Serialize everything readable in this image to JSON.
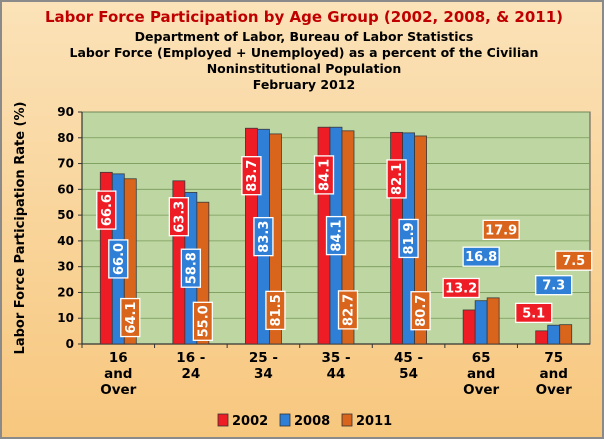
{
  "chart_data": {
    "type": "bar",
    "title": "Labor Force Participation by Age Group (2002, 2008, & 2011)",
    "subtitle_lines": [
      "Department of Labor, Bureau of Labor Statistics",
      "Labor Force (Employed + Unemployed) as a percent of the Civilian",
      "Noninstitutional Population",
      "February 2012"
    ],
    "ylabel": "Labor Force Participation Rate (%)",
    "xlabel": "",
    "ylim": [
      0,
      90
    ],
    "yticks": [
      0,
      10,
      20,
      30,
      40,
      50,
      60,
      70,
      80,
      90
    ],
    "grid": true,
    "legend_position": "bottom",
    "categories": [
      [
        "16",
        "and",
        "Over"
      ],
      [
        "16 -",
        "24"
      ],
      [
        "25 -",
        "34"
      ],
      [
        "35 -",
        "44"
      ],
      [
        "45 -",
        "54"
      ],
      [
        "65",
        "and",
        "Over"
      ],
      [
        "75",
        "and",
        "Over"
      ]
    ],
    "series": [
      {
        "name": "2002",
        "color": "#ee1c24",
        "values": [
          66.6,
          63.3,
          83.7,
          84.1,
          82.1,
          13.2,
          5.1
        ],
        "labels": [
          "66.6",
          "63.3",
          "83.7",
          "84.1",
          "82.1",
          "13.2",
          "5.1"
        ]
      },
      {
        "name": "2008",
        "color": "#2f7fd6",
        "values": [
          66.0,
          58.8,
          83.3,
          84.1,
          81.9,
          16.8,
          7.3
        ],
        "labels": [
          "66.0",
          "58.8",
          "83.3",
          "84.1",
          "81.9",
          "16.8",
          "7.3"
        ]
      },
      {
        "name": "2011",
        "color": "#d9641c",
        "values": [
          64.1,
          55.0,
          81.5,
          82.7,
          80.7,
          17.9,
          7.5
        ],
        "labels": [
          "64.1",
          "55.0",
          "81.5",
          "82.7",
          "80.7",
          "17.9",
          "7.5"
        ]
      }
    ],
    "colors": {
      "plot_background": "#bdd6a2",
      "frame_background": "#f7c77e",
      "title": "#c00000"
    }
  }
}
